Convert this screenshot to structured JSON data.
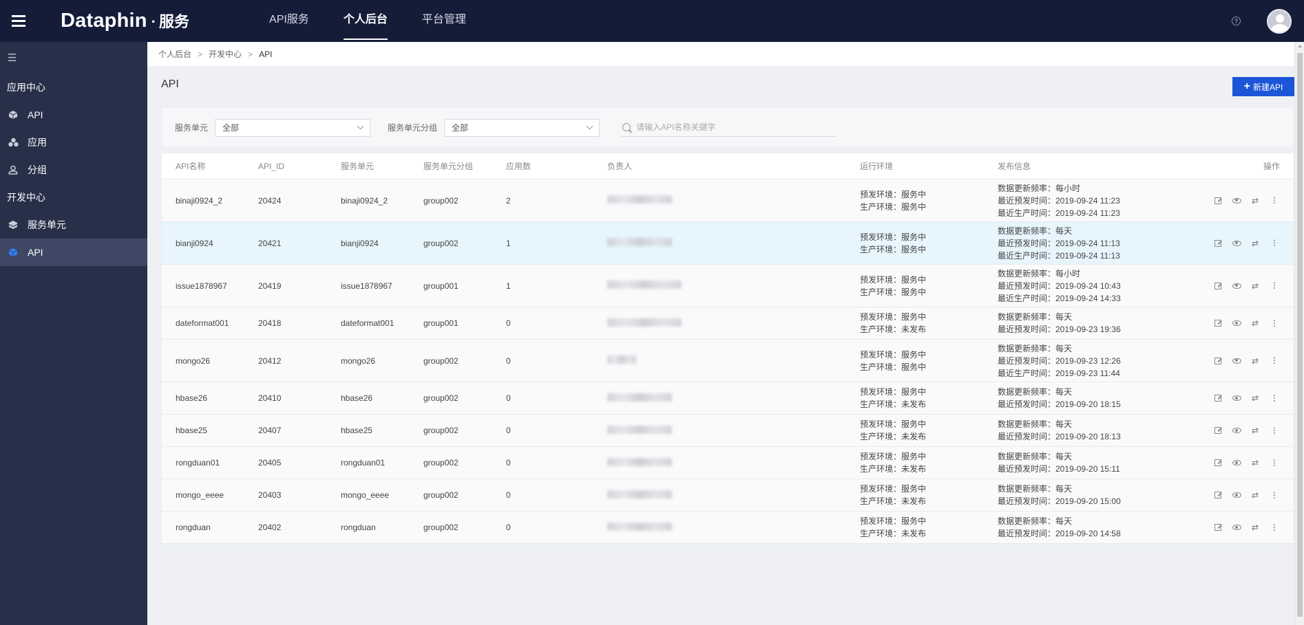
{
  "app": {
    "brand": "Dataphin",
    "dot": "·",
    "subtitle": "服务",
    "nav": [
      {
        "label": "API服务",
        "active": false
      },
      {
        "label": "个人后台",
        "active": true
      },
      {
        "label": "平台管理",
        "active": false
      }
    ],
    "help_glyph": "?"
  },
  "sidebar": {
    "collapse_glyph": "☰",
    "sections": [
      {
        "title": "应用中心",
        "items": [
          {
            "label": "API",
            "icon": "cube-icon",
            "active": false
          },
          {
            "label": "应用",
            "icon": "apps-cluster-icon",
            "active": false
          },
          {
            "label": "分组",
            "icon": "user-group-icon",
            "active": false
          }
        ]
      },
      {
        "title": "开发中心",
        "items": [
          {
            "label": "服务单元",
            "icon": "layers-icon",
            "active": false
          },
          {
            "label": "API",
            "icon": "cube-icon",
            "active": true
          }
        ]
      }
    ]
  },
  "breadcrumb": [
    "个人后台",
    "开发中心",
    "API"
  ],
  "breadcrumb_sep": ">",
  "page": {
    "title": "API",
    "new_button": "新建API",
    "new_button_plus": "+"
  },
  "filters": {
    "unit_label": "服务单元",
    "unit_value": "全部",
    "group_label": "服务单元分组",
    "group_value": "全部",
    "search_placeholder": "请输入API名称关键字"
  },
  "table": {
    "columns": {
      "name": "API名称",
      "id": "API_ID",
      "unit": "服务单元",
      "group": "服务单元分组",
      "apps": "应用数",
      "owner": "负责人",
      "env": "运行环境",
      "pub": "发布信息",
      "ops": "操作"
    },
    "rows": [
      {
        "name": "binaji0924_2",
        "id": "20424",
        "unit": "binaji0924_2",
        "group": "group002",
        "apps": "2",
        "env": [
          "预发环境：服务中",
          "生产环境：服务中"
        ],
        "pub": [
          "数据更新频率：每小时",
          "最近预发时间：2019-09-24 11:23",
          "最近生产时间：2019-09-24 11:23"
        ],
        "highlight": false
      },
      {
        "name": "bianji0924",
        "id": "20421",
        "unit": "bianji0924",
        "group": "group002",
        "apps": "1",
        "env": [
          "预发环境：服务中",
          "生产环境：服务中"
        ],
        "pub": [
          "数据更新频率：每天",
          "最近预发时间：2019-09-24 11:13",
          "最近生产时间：2019-09-24 11:13"
        ],
        "highlight": true
      },
      {
        "name": "issue1878967",
        "id": "20419",
        "unit": "issue1878967",
        "group": "group001",
        "apps": "1",
        "env": [
          "预发环境：服务中",
          "生产环境：服务中"
        ],
        "pub": [
          "数据更新频率：每小时",
          "最近预发时间：2019-09-24 10:43",
          "最近生产时间：2019-09-24 14:33"
        ],
        "highlight": false
      },
      {
        "name": "dateformat001",
        "id": "20418",
        "unit": "dateformat001",
        "group": "group001",
        "apps": "0",
        "env": [
          "预发环境：服务中",
          "生产环境：未发布"
        ],
        "pub": [
          "数据更新频率：每天",
          "最近预发时间：2019-09-23 19:36"
        ],
        "highlight": false
      },
      {
        "name": "mongo26",
        "id": "20412",
        "unit": "mongo26",
        "group": "group002",
        "apps": "0",
        "env": [
          "预发环境：服务中",
          "生产环境：服务中"
        ],
        "pub": [
          "数据更新频率：每天",
          "最近预发时间：2019-09-23 12:26",
          "最近生产时间：2019-09-23 11:44"
        ],
        "highlight": false
      },
      {
        "name": "hbase26",
        "id": "20410",
        "unit": "hbase26",
        "group": "group002",
        "apps": "0",
        "env": [
          "预发环境：服务中",
          "生产环境：未发布"
        ],
        "pub": [
          "数据更新频率：每天",
          "最近预发时间：2019-09-20 18:15"
        ],
        "highlight": false
      },
      {
        "name": "hbase25",
        "id": "20407",
        "unit": "hbase25",
        "group": "group002",
        "apps": "0",
        "env": [
          "预发环境：服务中",
          "生产环境：未发布"
        ],
        "pub": [
          "数据更新频率：每天",
          "最近预发时间：2019-09-20 18:13"
        ],
        "highlight": false
      },
      {
        "name": "rongduan01",
        "id": "20405",
        "unit": "rongduan01",
        "group": "group002",
        "apps": "0",
        "env": [
          "预发环境：服务中",
          "生产环境：未发布"
        ],
        "pub": [
          "数据更新频率：每天",
          "最近预发时间：2019-09-20 15:11"
        ],
        "highlight": false
      },
      {
        "name": "mongo_eeee",
        "id": "20403",
        "unit": "mongo_eeee",
        "group": "group002",
        "apps": "0",
        "env": [
          "预发环境：服务中",
          "生产环境：未发布"
        ],
        "pub": [
          "数据更新频率：每天",
          "最近预发时间：2019-09-20 15:00"
        ],
        "highlight": false
      },
      {
        "name": "rongduan",
        "id": "20402",
        "unit": "rongduan",
        "group": "group002",
        "apps": "0",
        "env": [
          "预发环境：服务中",
          "生产环境：未发布"
        ],
        "pub": [
          "数据更新频率：每天",
          "最近预发时间：2019-09-20 14:58"
        ],
        "highlight": false
      }
    ],
    "ops_icons": [
      "edit-icon",
      "eye-icon",
      "swap-icon",
      "more-vertical-icon"
    ],
    "ops_glyphs": {
      "swap": "⇄",
      "more": "···"
    }
  },
  "colors": {
    "topbar": "#141c38",
    "sidebar": "#283049",
    "sidebar_active": "#3e4865",
    "primary": "#1c56d8",
    "row_highlight": "#e7f5fd"
  }
}
